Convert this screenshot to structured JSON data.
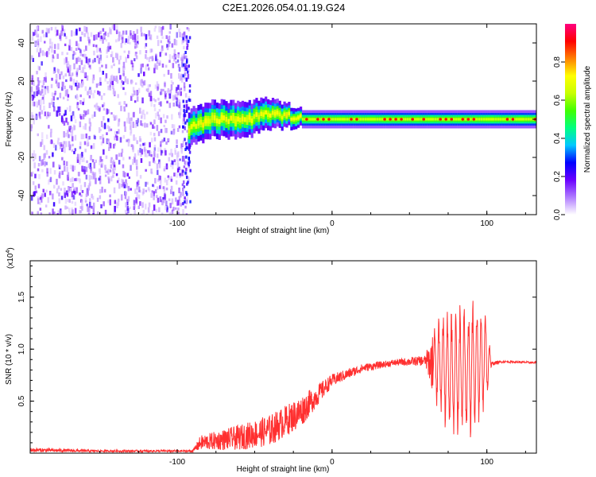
{
  "title": "C2E1.2026.054.01.19.G24",
  "chart_data": [
    {
      "type": "heatmap",
      "name": "spectrogram",
      "xlabel": "Height of straight line (km)",
      "ylabel": "Frequency (Hz)",
      "xlim": [
        -195,
        132
      ],
      "ylim": [
        -50,
        50
      ],
      "x_ticks": [
        -100,
        0,
        100
      ],
      "x_tick_labels": [
        "-100",
        "0",
        "100"
      ],
      "y_ticks": [
        -40,
        -20,
        0,
        20,
        40
      ],
      "y_tick_labels": [
        "-40",
        "-20",
        "0",
        "20",
        "40"
      ],
      "colorbar": {
        "label": "Normalized spectral amplitude",
        "range": [
          0,
          1
        ],
        "ticks": [
          0.0,
          0.2,
          0.4,
          0.6,
          0.8
        ],
        "tick_labels": [
          "0.0",
          "0.2",
          "0.4",
          "0.6",
          "0.8"
        ],
        "colormap": [
          "#ffffff",
          "#b07cff",
          "#6a00ff",
          "#0000ff",
          "#00c8ff",
          "#00ff80",
          "#40ff00",
          "#c8ff00",
          "#ffff00",
          "#ff8000",
          "#ff0000",
          "#ff0080"
        ]
      },
      "noise_region_x": [
        -195,
        -93
      ],
      "signal_band": {
        "x": [
          -93,
          -80,
          -60,
          -40,
          -30,
          -20,
          0,
          40,
          80,
          100,
          132
        ],
        "center_freq": [
          -5,
          0,
          -1,
          3,
          2,
          0,
          0,
          0,
          0,
          0,
          0
        ],
        "half_width": [
          6,
          6,
          6,
          5,
          4,
          3,
          3,
          3,
          3,
          3,
          3
        ]
      }
    },
    {
      "type": "line",
      "name": "snr",
      "xlabel": "Height of straight line (km)",
      "ylabel": "SNR (10 * v/v)",
      "y_scale_label": "(x10",
      "y_scale_exp": "4",
      "y_scale_close": ")",
      "xlim": [
        -195,
        132
      ],
      "ylim": [
        0,
        1.85
      ],
      "x_ticks": [
        -100,
        0,
        100
      ],
      "x_tick_labels": [
        "-100",
        "0",
        "100"
      ],
      "y_ticks": [
        0.5,
        1.0,
        1.5
      ],
      "y_tick_labels": [
        "0.5",
        "1.0",
        "1.5"
      ],
      "color": "#ff3030",
      "envelope": {
        "x": [
          -195,
          -150,
          -90,
          -85,
          -60,
          -40,
          -20,
          0,
          20,
          40,
          60,
          70,
          80,
          90,
          100,
          103,
          110,
          132
        ],
        "mean": [
          0.03,
          0.02,
          0.02,
          0.1,
          0.15,
          0.22,
          0.4,
          0.7,
          0.82,
          0.87,
          0.89,
          0.85,
          0.75,
          0.85,
          0.9,
          0.86,
          0.88,
          0.87
        ],
        "amplitude": [
          0.02,
          0.01,
          0.01,
          0.07,
          0.12,
          0.15,
          0.15,
          0.06,
          0.04,
          0.03,
          0.05,
          0.5,
          0.6,
          0.65,
          0.45,
          0.02,
          0.01,
          0.01
        ]
      }
    }
  ]
}
